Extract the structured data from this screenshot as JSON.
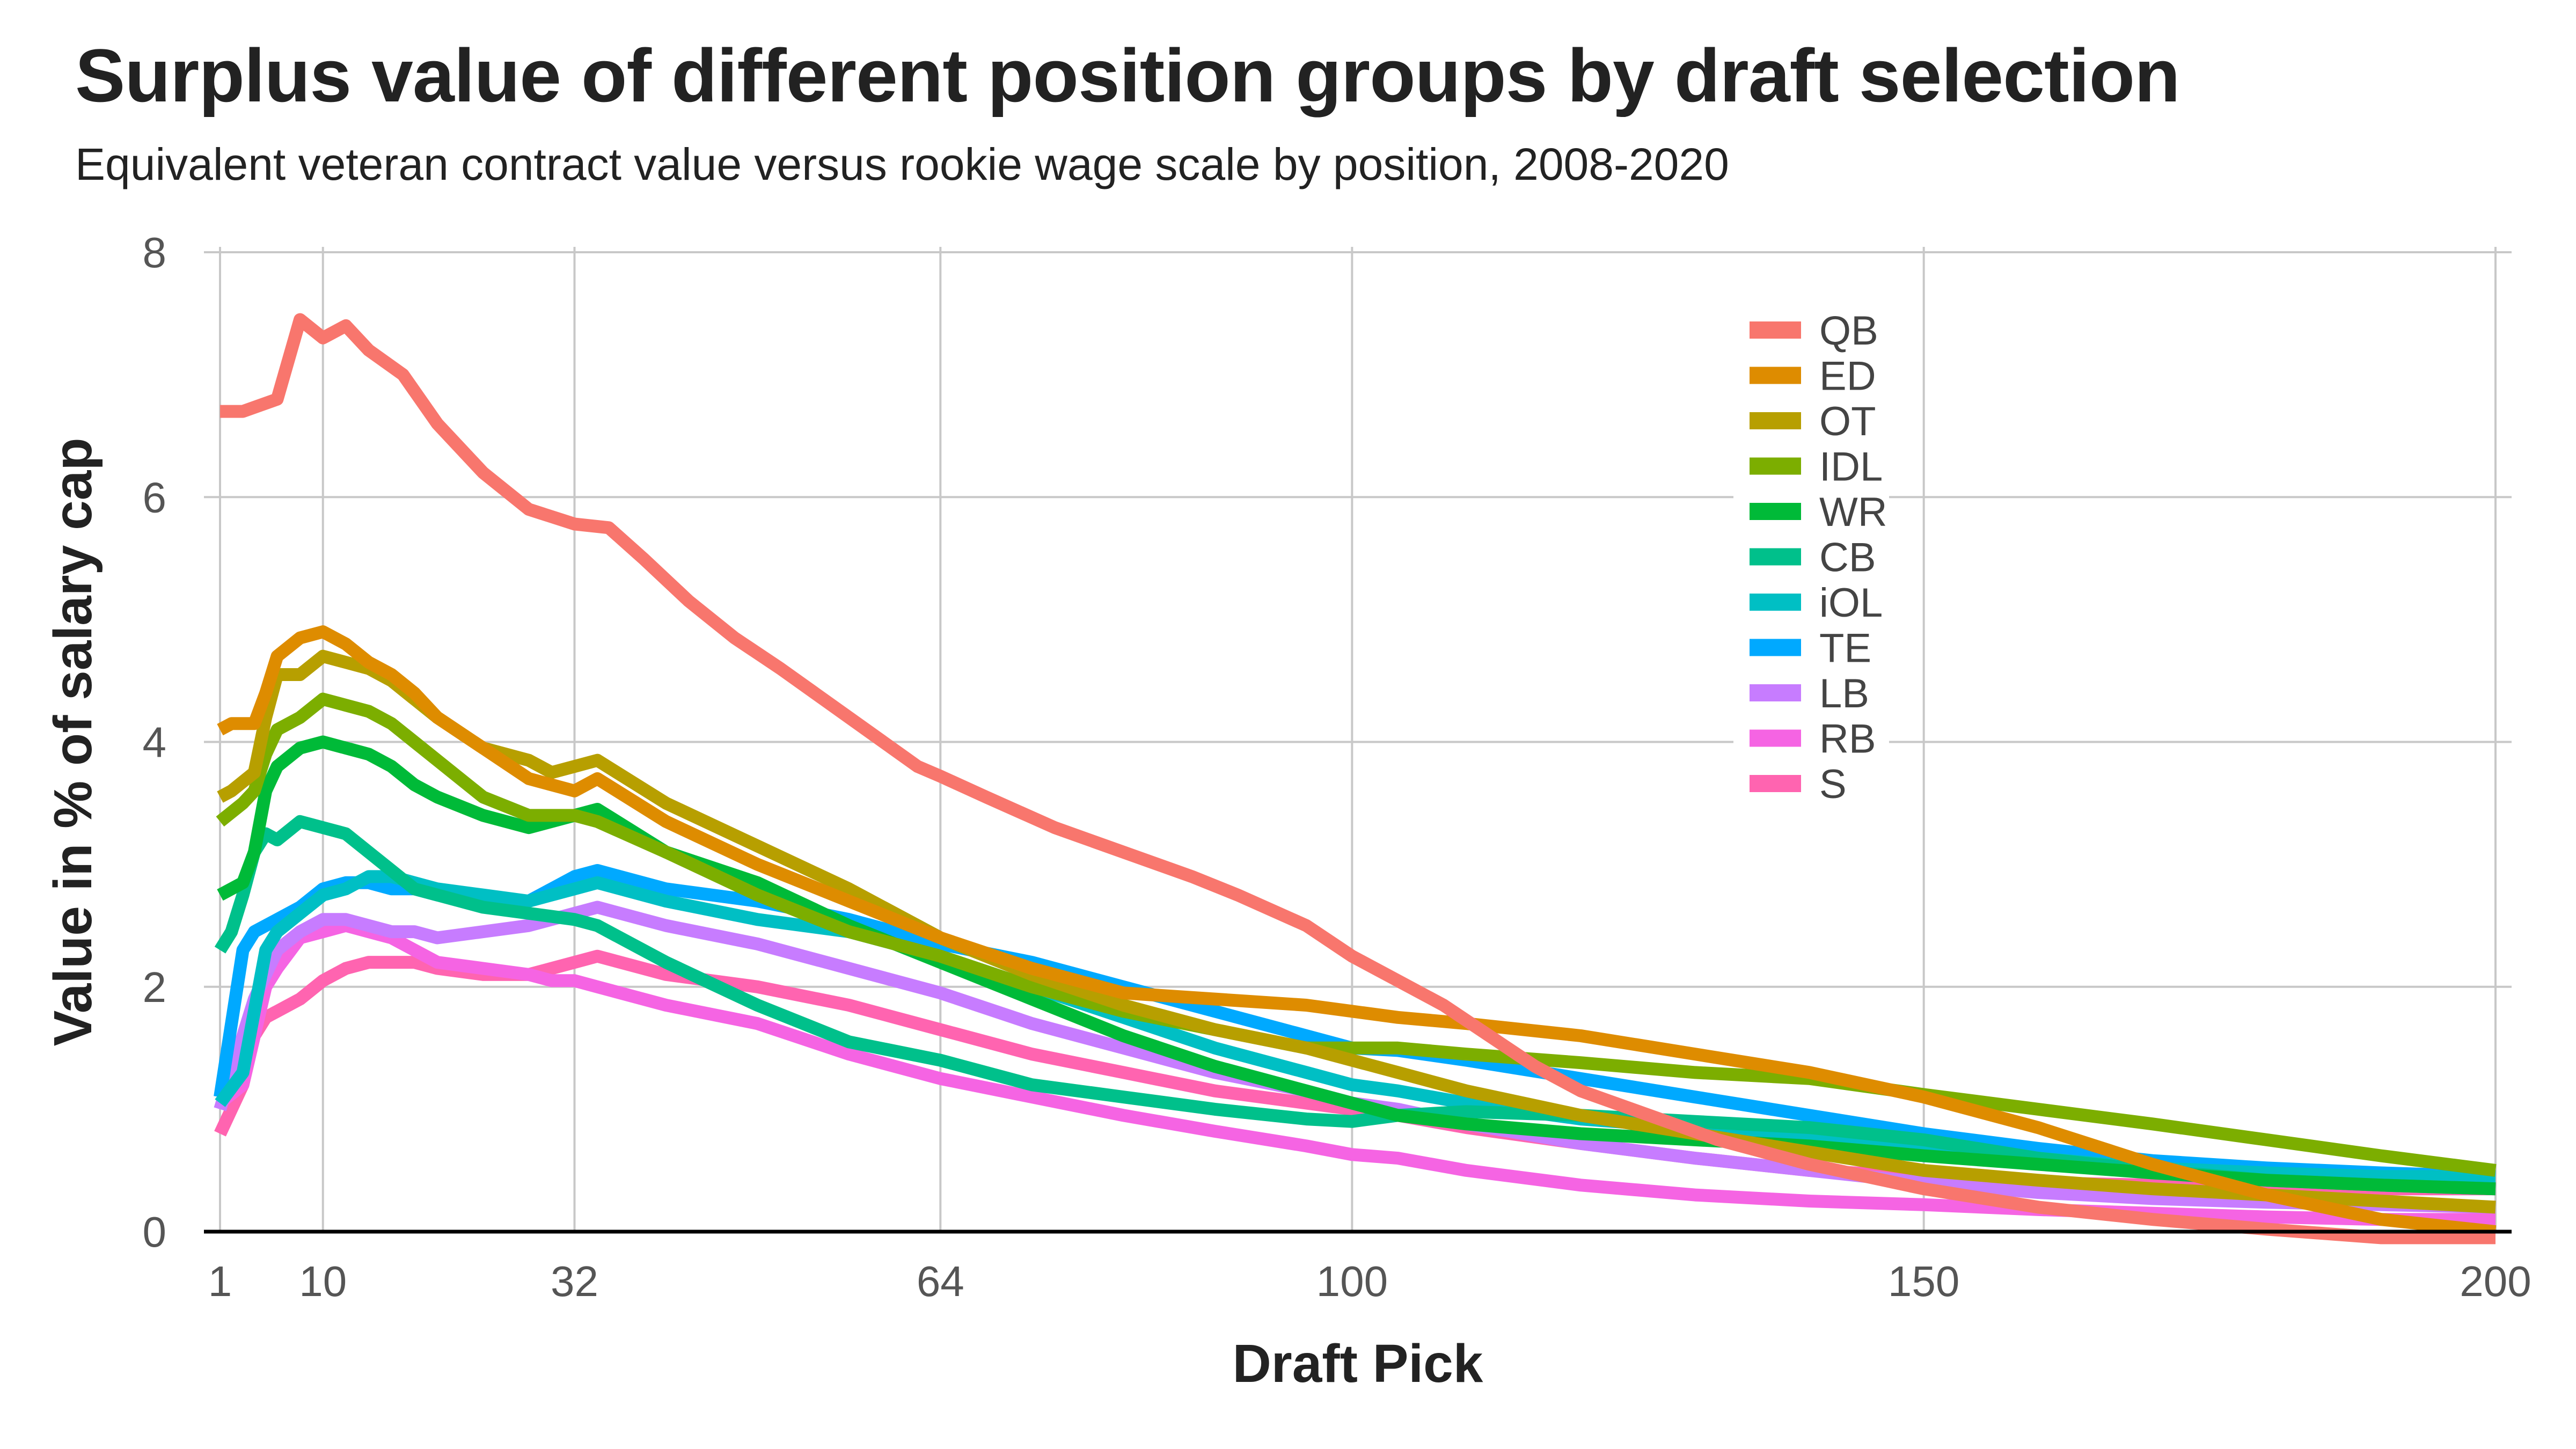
{
  "chart_data": {
    "type": "line",
    "title": "Surplus value of different position groups by draft selection",
    "subtitle": "Equivalent veteran contract value versus rookie wage scale by position, 2008-2020",
    "xlabel": "Draft Pick",
    "ylabel": "Value in % of salary cap",
    "xlim": [
      1,
      200
    ],
    "ylim": [
      0,
      8
    ],
    "xticks": [
      1,
      10,
      32,
      64,
      100,
      150,
      200
    ],
    "yticks": [
      0,
      2,
      4,
      6,
      8
    ],
    "grid": true,
    "legend_position": "top-right",
    "series": [
      {
        "name": "QB",
        "color": "#F8766D",
        "x": [
          1,
          3,
          6,
          8,
          10,
          12,
          14,
          17,
          20,
          24,
          28,
          32,
          35,
          38,
          42,
          46,
          50,
          56,
          62,
          64,
          68,
          74,
          80,
          86,
          90,
          96,
          100,
          104,
          108,
          112,
          116,
          120,
          126,
          132,
          140,
          150,
          160,
          170,
          180,
          190,
          200
        ],
        "y": [
          6.7,
          6.7,
          6.8,
          7.45,
          7.3,
          7.4,
          7.2,
          7.0,
          6.6,
          6.2,
          5.9,
          5.78,
          5.75,
          5.5,
          5.15,
          4.85,
          4.6,
          4.2,
          3.8,
          3.72,
          3.55,
          3.3,
          3.1,
          2.9,
          2.75,
          2.5,
          2.25,
          2.05,
          1.85,
          1.6,
          1.35,
          1.15,
          0.95,
          0.75,
          0.55,
          0.35,
          0.2,
          0.1,
          0.02,
          -0.05,
          -0.05
        ]
      },
      {
        "name": "ED",
        "color": "#DE8C00",
        "x": [
          1,
          2,
          4,
          5,
          6,
          8,
          10,
          12,
          14,
          16,
          18,
          20,
          24,
          28,
          32,
          34,
          40,
          48,
          56,
          64,
          72,
          80,
          88,
          96,
          100,
          104,
          110,
          120,
          130,
          140,
          150,
          160,
          170,
          180,
          190,
          200
        ],
        "y": [
          4.1,
          4.15,
          4.15,
          4.4,
          4.7,
          4.85,
          4.9,
          4.8,
          4.65,
          4.55,
          4.4,
          4.2,
          3.95,
          3.7,
          3.6,
          3.7,
          3.35,
          3.0,
          2.7,
          2.4,
          2.15,
          1.95,
          1.9,
          1.85,
          1.8,
          1.75,
          1.7,
          1.6,
          1.45,
          1.3,
          1.1,
          0.85,
          0.55,
          0.3,
          0.1,
          0.0
        ]
      },
      {
        "name": "OT",
        "color": "#B79F00",
        "x": [
          1,
          2,
          4,
          5,
          6,
          8,
          10,
          12,
          14,
          16,
          18,
          20,
          24,
          28,
          30,
          32,
          34,
          40,
          48,
          56,
          64,
          72,
          80,
          88,
          96,
          100,
          104,
          110,
          120,
          130,
          140,
          150,
          160,
          170,
          180,
          190,
          200
        ],
        "y": [
          3.55,
          3.6,
          3.75,
          4.2,
          4.55,
          4.55,
          4.7,
          4.65,
          4.6,
          4.5,
          4.35,
          4.2,
          3.95,
          3.85,
          3.75,
          3.8,
          3.85,
          3.5,
          3.15,
          2.8,
          2.4,
          2.1,
          1.85,
          1.65,
          1.5,
          1.4,
          1.3,
          1.15,
          0.95,
          0.8,
          0.65,
          0.5,
          0.42,
          0.35,
          0.3,
          0.25,
          0.2
        ]
      },
      {
        "name": "IDL",
        "color": "#7CAE00",
        "x": [
          1,
          3,
          4,
          5,
          6,
          8,
          10,
          12,
          14,
          16,
          18,
          20,
          24,
          28,
          30,
          32,
          34,
          40,
          48,
          56,
          64,
          72,
          80,
          88,
          96,
          100,
          104,
          110,
          120,
          130,
          140,
          150,
          160,
          170,
          180,
          190,
          200
        ],
        "y": [
          3.35,
          3.5,
          3.6,
          3.9,
          4.1,
          4.2,
          4.35,
          4.3,
          4.25,
          4.15,
          4.0,
          3.85,
          3.55,
          3.4,
          3.4,
          3.4,
          3.35,
          3.1,
          2.75,
          2.45,
          2.25,
          2.0,
          1.8,
          1.65,
          1.5,
          1.5,
          1.5,
          1.45,
          1.38,
          1.3,
          1.25,
          1.12,
          1.0,
          0.88,
          0.75,
          0.62,
          0.5
        ]
      },
      {
        "name": "WR",
        "color": "#00BA38",
        "x": [
          1,
          3,
          4,
          5,
          6,
          8,
          10,
          12,
          14,
          16,
          18,
          20,
          24,
          28,
          30,
          32,
          34,
          40,
          48,
          56,
          64,
          72,
          80,
          88,
          96,
          100,
          104,
          110,
          120,
          130,
          140,
          150,
          160,
          170,
          180,
          190,
          200
        ],
        "y": [
          2.75,
          2.85,
          3.1,
          3.6,
          3.8,
          3.95,
          4.0,
          3.95,
          3.9,
          3.8,
          3.65,
          3.55,
          3.4,
          3.3,
          3.35,
          3.4,
          3.45,
          3.1,
          2.85,
          2.5,
          2.2,
          1.9,
          1.6,
          1.35,
          1.15,
          1.05,
          0.95,
          0.88,
          0.8,
          0.75,
          0.7,
          0.62,
          0.55,
          0.48,
          0.42,
          0.38,
          0.35
        ]
      },
      {
        "name": "CB",
        "color": "#00C08B",
        "x": [
          1,
          2,
          3,
          4,
          5,
          6,
          8,
          10,
          12,
          14,
          16,
          18,
          20,
          24,
          28,
          32,
          34,
          40,
          48,
          56,
          64,
          72,
          80,
          88,
          96,
          100,
          104,
          110,
          120,
          130,
          140,
          150,
          160,
          170,
          180,
          190,
          200
        ],
        "y": [
          2.3,
          2.45,
          2.75,
          3.1,
          3.25,
          3.2,
          3.35,
          3.3,
          3.25,
          3.1,
          2.95,
          2.8,
          2.75,
          2.65,
          2.6,
          2.55,
          2.5,
          2.2,
          1.85,
          1.55,
          1.4,
          1.2,
          1.1,
          1.0,
          0.92,
          0.9,
          0.95,
          0.98,
          0.95,
          0.9,
          0.85,
          0.75,
          0.6,
          0.5,
          0.42,
          0.38,
          0.35
        ]
      },
      {
        "name": "iOL",
        "color": "#00BFC4",
        "x": [
          1,
          3,
          4,
          5,
          6,
          8,
          10,
          12,
          14,
          16,
          18,
          20,
          24,
          28,
          30,
          32,
          34,
          40,
          48,
          56,
          64,
          72,
          80,
          88,
          96,
          100,
          104,
          110,
          120,
          130,
          140,
          150,
          160,
          170,
          180,
          190,
          200
        ],
        "y": [
          1.05,
          1.3,
          1.8,
          2.3,
          2.45,
          2.6,
          2.75,
          2.8,
          2.9,
          2.9,
          2.85,
          2.8,
          2.75,
          2.7,
          2.75,
          2.8,
          2.85,
          2.7,
          2.55,
          2.45,
          2.25,
          2.0,
          1.75,
          1.5,
          1.3,
          1.2,
          1.15,
          1.05,
          0.92,
          0.85,
          0.8,
          0.7,
          0.6,
          0.52,
          0.48,
          0.45,
          0.45
        ]
      },
      {
        "name": "TE",
        "color": "#00A9FF",
        "x": [
          1,
          3,
          4,
          5,
          6,
          8,
          10,
          12,
          14,
          16,
          18,
          20,
          24,
          28,
          30,
          32,
          34,
          40,
          48,
          56,
          64,
          72,
          80,
          88,
          96,
          100,
          104,
          110,
          120,
          130,
          140,
          150,
          160,
          170,
          180,
          190,
          200
        ],
        "y": [
          1.1,
          2.3,
          2.45,
          2.5,
          2.55,
          2.65,
          2.8,
          2.85,
          2.85,
          2.8,
          2.8,
          2.75,
          2.7,
          2.7,
          2.8,
          2.9,
          2.95,
          2.8,
          2.7,
          2.55,
          2.35,
          2.2,
          2.0,
          1.8,
          1.6,
          1.5,
          1.48,
          1.4,
          1.25,
          1.1,
          0.95,
          0.8,
          0.68,
          0.58,
          0.52,
          0.48,
          0.45
        ]
      },
      {
        "name": "LB",
        "color": "#C77CFF",
        "x": [
          1,
          3,
          4,
          5,
          6,
          8,
          10,
          12,
          14,
          16,
          18,
          20,
          24,
          28,
          30,
          32,
          34,
          40,
          48,
          56,
          64,
          72,
          80,
          88,
          96,
          100,
          104,
          110,
          120,
          130,
          140,
          150,
          160,
          170,
          180,
          190,
          200
        ],
        "y": [
          1.0,
          1.6,
          1.9,
          2.1,
          2.3,
          2.45,
          2.55,
          2.55,
          2.5,
          2.45,
          2.45,
          2.4,
          2.45,
          2.5,
          2.55,
          2.6,
          2.65,
          2.5,
          2.35,
          2.15,
          1.95,
          1.7,
          1.5,
          1.3,
          1.15,
          1.05,
          1.0,
          0.88,
          0.72,
          0.6,
          0.5,
          0.4,
          0.32,
          0.27,
          0.24,
          0.22,
          0.2
        ]
      },
      {
        "name": "RB",
        "color": "#F564E3",
        "x": [
          1,
          3,
          4,
          5,
          6,
          8,
          10,
          12,
          14,
          16,
          18,
          20,
          24,
          28,
          30,
          32,
          34,
          40,
          48,
          56,
          64,
          72,
          80,
          88,
          96,
          100,
          104,
          110,
          120,
          130,
          140,
          150,
          160,
          170,
          180,
          190,
          200
        ],
        "y": [
          1.05,
          1.2,
          1.6,
          2.0,
          2.15,
          2.4,
          2.45,
          2.5,
          2.45,
          2.4,
          2.3,
          2.2,
          2.15,
          2.1,
          2.05,
          2.05,
          2.0,
          1.85,
          1.7,
          1.45,
          1.25,
          1.1,
          0.95,
          0.82,
          0.7,
          0.63,
          0.6,
          0.5,
          0.38,
          0.3,
          0.25,
          0.22,
          0.18,
          0.15,
          0.12,
          0.1,
          0.1
        ]
      },
      {
        "name": "S",
        "color": "#FF64B0",
        "x": [
          1,
          3,
          4,
          5,
          6,
          8,
          10,
          12,
          14,
          16,
          18,
          20,
          24,
          28,
          30,
          32,
          34,
          40,
          48,
          56,
          64,
          72,
          80,
          88,
          96,
          100,
          104,
          110,
          120,
          130,
          140,
          150,
          160,
          170,
          180,
          190,
          200
        ],
        "y": [
          0.8,
          1.2,
          1.6,
          1.75,
          1.8,
          1.9,
          2.05,
          2.15,
          2.2,
          2.2,
          2.2,
          2.15,
          2.1,
          2.1,
          2.15,
          2.2,
          2.25,
          2.1,
          2.0,
          1.85,
          1.65,
          1.45,
          1.3,
          1.15,
          1.05,
          1.0,
          0.95,
          0.85,
          0.72,
          0.6,
          0.5,
          0.45,
          0.4,
          0.38,
          0.36,
          0.35,
          0.35
        ]
      }
    ]
  }
}
